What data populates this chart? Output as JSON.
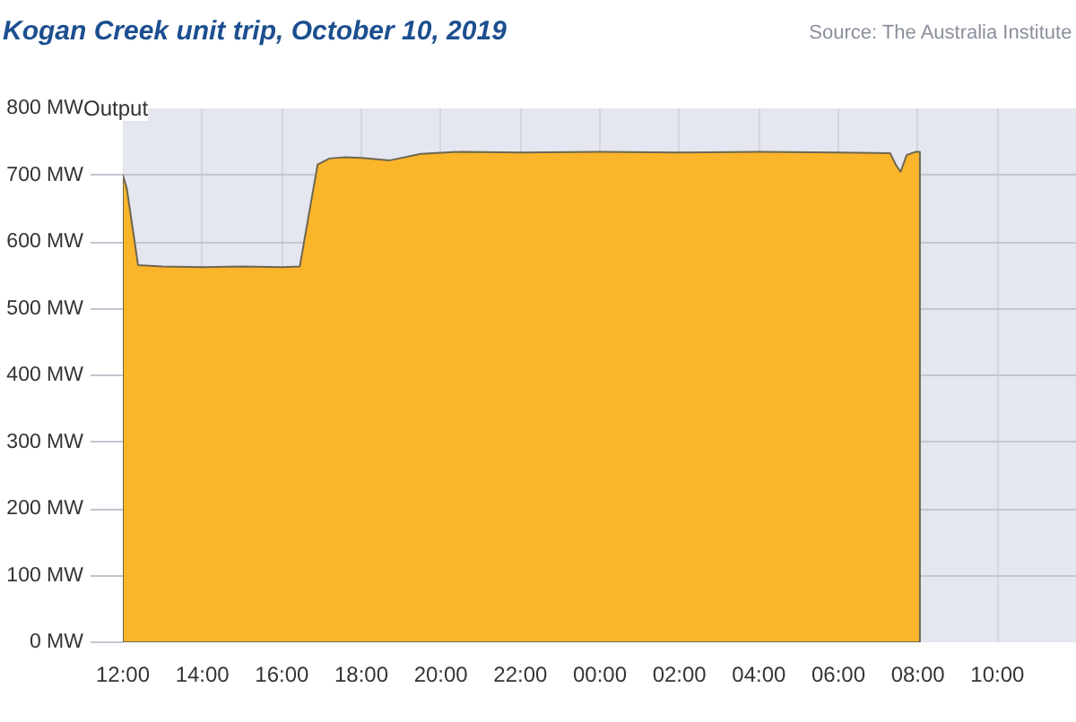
{
  "chart_data": {
    "type": "area",
    "title": "Kogan Creek unit trip, October 10, 2019",
    "ylabel": "Output",
    "annotations": [
      "Source: The Australia Institute"
    ],
    "x": [
      "2019-10-10T12:00",
      "2019-10-10T12:06",
      "2019-10-10T12:23",
      "2019-10-10T13:00",
      "2019-10-10T14:00",
      "2019-10-10T15:00",
      "2019-10-10T16:00",
      "2019-10-10T16:27",
      "2019-10-10T16:54",
      "2019-10-10T17:12",
      "2019-10-10T17:36",
      "2019-10-10T18:00",
      "2019-10-10T18:42",
      "2019-10-10T19:30",
      "2019-10-10T20:30",
      "2019-10-10T22:00",
      "2019-10-11T00:00",
      "2019-10-11T02:00",
      "2019-10-11T04:00",
      "2019-10-11T06:00",
      "2019-10-11T07:18",
      "2019-10-11T07:27",
      "2019-10-11T07:34",
      "2019-10-11T07:43",
      "2019-10-11T07:57",
      "2019-10-11T08:03"
    ],
    "values": [
      700,
      680,
      565,
      563,
      562,
      563,
      562,
      563,
      716,
      725,
      727,
      726,
      722,
      732,
      735,
      734,
      735,
      734,
      735,
      734,
      733,
      715,
      705,
      730,
      735,
      735
    ],
    "color": "#fbb52b",
    "xlim": [
      "2019-10-10T12:00",
      "2019-10-11T12:00"
    ],
    "xticks": [
      {
        "value": "2019-10-10T12:00",
        "label": "12:00"
      },
      {
        "value": "2019-10-10T14:00",
        "label": "14:00"
      },
      {
        "value": "2019-10-10T16:00",
        "label": "16:00"
      },
      {
        "value": "2019-10-10T18:00",
        "label": "18:00"
      },
      {
        "value": "2019-10-10T20:00",
        "label": "20:00"
      },
      {
        "value": "2019-10-10T22:00",
        "label": "22:00"
      },
      {
        "value": "2019-10-11T00:00",
        "label": "00:00"
      },
      {
        "value": "2019-10-11T02:00",
        "label": "02:00"
      },
      {
        "value": "2019-10-11T04:00",
        "label": "04:00"
      },
      {
        "value": "2019-10-11T06:00",
        "label": "06:00"
      },
      {
        "value": "2019-10-11T08:00",
        "label": "08:00"
      },
      {
        "value": "2019-10-11T10:00",
        "label": "10:00"
      }
    ],
    "ylim": [
      0,
      800
    ],
    "yticks": [
      {
        "value": 0,
        "label": "0 MW"
      },
      {
        "value": 100,
        "label": "100 MW"
      },
      {
        "value": 200,
        "label": "200 MW"
      },
      {
        "value": 300,
        "label": "300 MW"
      },
      {
        "value": 400,
        "label": "400 MW"
      },
      {
        "value": 500,
        "label": "500 MW"
      },
      {
        "value": 600,
        "label": "600 MW"
      },
      {
        "value": 700,
        "label": "700 MW"
      },
      {
        "value": 800,
        "label": "800 MW"
      }
    ],
    "grid": true
  }
}
